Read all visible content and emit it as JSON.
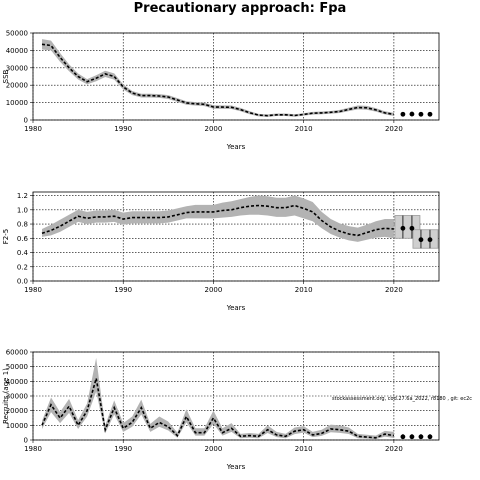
{
  "title": "Precautionary approach: Fpa",
  "note": "stockassessment.org, cod.27.6a_2022, r8180 , git: ec2c",
  "chart_data": [
    {
      "type": "line",
      "id": "ssb",
      "ylabel": "SSB",
      "xlabel": "Years",
      "xlim": [
        1980,
        2025
      ],
      "ylim": [
        0,
        50000
      ],
      "xticks": [
        1980,
        1990,
        2000,
        2010,
        2020
      ],
      "yticks": [
        0,
        10000,
        20000,
        30000,
        40000,
        50000
      ],
      "grid": true,
      "x": [
        1981,
        1982,
        1983,
        1984,
        1985,
        1986,
        1987,
        1988,
        1989,
        1990,
        1991,
        1992,
        1993,
        1994,
        1995,
        1996,
        1997,
        1998,
        1999,
        2000,
        2001,
        2002,
        2003,
        2004,
        2005,
        2006,
        2007,
        2008,
        2009,
        2010,
        2011,
        2012,
        2013,
        2014,
        2015,
        2016,
        2017,
        2018,
        2019,
        2020
      ],
      "y": [
        43500,
        42800,
        36000,
        30000,
        25000,
        22000,
        24000,
        26500,
        25000,
        19000,
        15500,
        14000,
        14000,
        13800,
        13200,
        11500,
        9800,
        9300,
        9000,
        7500,
        7400,
        7300,
        6000,
        4200,
        2800,
        2500,
        3000,
        3000,
        2600,
        3200,
        3900,
        4100,
        4400,
        4900,
        6100,
        7200,
        7000,
        5800,
        4100,
        3200
      ],
      "lower": [
        40500,
        40000,
        33500,
        28000,
        23300,
        20500,
        22300,
        24700,
        23200,
        17500,
        14300,
        12900,
        12900,
        12700,
        12100,
        10400,
        8800,
        8300,
        8000,
        6500,
        6400,
        6300,
        5000,
        3300,
        2100,
        1800,
        2300,
        2300,
        1900,
        2500,
        3100,
        3300,
        3600,
        4000,
        5100,
        6100,
        5900,
        4800,
        3200,
        2300
      ],
      "upper": [
        46500,
        45600,
        38500,
        32000,
        26700,
        23500,
        25700,
        28300,
        26800,
        20500,
        16700,
        15100,
        15100,
        14900,
        14300,
        12600,
        10800,
        10300,
        10000,
        8500,
        8400,
        8300,
        7000,
        5100,
        3500,
        3200,
        3700,
        3700,
        3300,
        3900,
        4700,
        4900,
        5200,
        5800,
        7100,
        8300,
        8100,
        6800,
        5000,
        4100
      ],
      "forecast": {
        "x": [
          2021,
          2022,
          2023,
          2024
        ],
        "y": [
          3300,
          3400,
          3300,
          3300
        ],
        "lower": [
          2700,
          2800,
          2700,
          2600
        ],
        "upper": [
          3900,
          4000,
          3900,
          4000
        ]
      }
    },
    {
      "type": "line",
      "id": "fbar",
      "ylabel": "F2-5",
      "xlabel": "Years",
      "xlim": [
        1980,
        2025
      ],
      "ylim": [
        0,
        1.25
      ],
      "xticks": [
        1980,
        1990,
        2000,
        2010,
        2020
      ],
      "yticks": [
        0.0,
        0.2,
        0.4,
        0.6,
        0.8,
        1.0,
        1.2
      ],
      "grid": true,
      "x": [
        1981,
        1982,
        1983,
        1984,
        1985,
        1986,
        1987,
        1988,
        1989,
        1990,
        1991,
        1992,
        1993,
        1994,
        1995,
        1996,
        1997,
        1998,
        1999,
        2000,
        2001,
        2002,
        2003,
        2004,
        2005,
        2006,
        2007,
        2008,
        2009,
        2010,
        2011,
        2012,
        2013,
        2014,
        2015,
        2016,
        2017,
        2018,
        2019,
        2020
      ],
      "y": [
        0.67,
        0.71,
        0.77,
        0.84,
        0.91,
        0.88,
        0.9,
        0.9,
        0.91,
        0.87,
        0.89,
        0.89,
        0.89,
        0.89,
        0.9,
        0.93,
        0.96,
        0.97,
        0.97,
        0.97,
        0.99,
        1.0,
        1.03,
        1.05,
        1.06,
        1.05,
        1.03,
        1.03,
        1.06,
        1.02,
        0.97,
        0.85,
        0.76,
        0.7,
        0.66,
        0.64,
        0.68,
        0.72,
        0.74,
        0.73
      ],
      "lower": [
        0.62,
        0.64,
        0.69,
        0.76,
        0.83,
        0.8,
        0.82,
        0.82,
        0.83,
        0.79,
        0.81,
        0.81,
        0.81,
        0.81,
        0.82,
        0.85,
        0.88,
        0.88,
        0.88,
        0.88,
        0.89,
        0.9,
        0.92,
        0.93,
        0.93,
        0.92,
        0.9,
        0.9,
        0.92,
        0.88,
        0.84,
        0.74,
        0.66,
        0.61,
        0.57,
        0.55,
        0.58,
        0.61,
        0.62,
        0.6
      ],
      "upper": [
        0.73,
        0.79,
        0.86,
        0.93,
        1.0,
        0.97,
        0.99,
        0.99,
        1.0,
        0.96,
        0.98,
        0.98,
        0.98,
        0.98,
        0.99,
        1.02,
        1.05,
        1.07,
        1.07,
        1.07,
        1.1,
        1.12,
        1.15,
        1.18,
        1.2,
        1.19,
        1.17,
        1.17,
        1.2,
        1.16,
        1.11,
        0.97,
        0.87,
        0.81,
        0.77,
        0.75,
        0.79,
        0.84,
        0.87,
        0.87
      ],
      "forecast": {
        "x": [
          2021,
          2022,
          2023,
          2024
        ],
        "y": [
          0.74,
          0.74,
          0.58,
          0.58
        ],
        "lower": [
          0.6,
          0.6,
          0.46,
          0.46
        ],
        "upper": [
          0.92,
          0.92,
          0.72,
          0.72
        ]
      }
    },
    {
      "type": "line",
      "id": "recruits",
      "ylabel": "Recruits (age 1)",
      "xlabel": "Years",
      "xlim": [
        1980,
        2025
      ],
      "ylim": [
        0,
        60000
      ],
      "xticks": [
        1980,
        1990,
        2000,
        2010,
        2020
      ],
      "yticks": [
        0,
        10000,
        20000,
        30000,
        40000,
        50000,
        60000
      ],
      "grid": true,
      "x": [
        1981,
        1982,
        1983,
        1984,
        1985,
        1986,
        1987,
        1988,
        1989,
        1990,
        1991,
        1992,
        1993,
        1994,
        1995,
        1996,
        1997,
        1998,
        1999,
        2000,
        2001,
        2002,
        2003,
        2004,
        2005,
        2006,
        2007,
        2008,
        2009,
        2010,
        2011,
        2012,
        2013,
        2014,
        2015,
        2016,
        2017,
        2018,
        2019,
        2020
      ],
      "y": [
        10000,
        24000,
        15000,
        23000,
        10000,
        20000,
        42000,
        7000,
        22000,
        8000,
        12000,
        22000,
        8000,
        12000,
        9000,
        3000,
        16000,
        5000,
        5000,
        15000,
        5000,
        8000,
        2500,
        3000,
        2500,
        7000,
        3500,
        2500,
        6000,
        7000,
        3500,
        4500,
        7500,
        7000,
        6000,
        2500,
        2000,
        1500,
        4000,
        3000
      ],
      "lower": [
        7500,
        19000,
        11500,
        18500,
        7500,
        16000,
        33000,
        4500,
        17500,
        5500,
        9000,
        17500,
        5500,
        9000,
        6500,
        1500,
        12000,
        3000,
        3000,
        11000,
        3000,
        5500,
        1200,
        1600,
        1200,
        4800,
        2000,
        1200,
        4000,
        5000,
        2000,
        2800,
        5300,
        4900,
        4100,
        1200,
        900,
        600,
        2300,
        1400
      ],
      "upper": [
        13000,
        29000,
        19000,
        28000,
        13500,
        25000,
        56000,
        10000,
        27000,
        11500,
        16000,
        27500,
        11000,
        16000,
        12500,
        5000,
        21000,
        8000,
        8000,
        20000,
        8000,
        11500,
        4200,
        4800,
        4200,
        10000,
        5500,
        4200,
        8500,
        9500,
        5500,
        7000,
        10500,
        10000,
        8500,
        4200,
        3600,
        3000,
        6200,
        5500
      ],
      "forecast": {
        "x": [
          2021,
          2022,
          2023,
          2024
        ],
        "y": [
          2200,
          2200,
          2200,
          2200
        ],
        "lower": [
          900,
          900,
          900,
          900
        ],
        "upper": [
          4000,
          4000,
          4000,
          4000
        ]
      }
    }
  ]
}
